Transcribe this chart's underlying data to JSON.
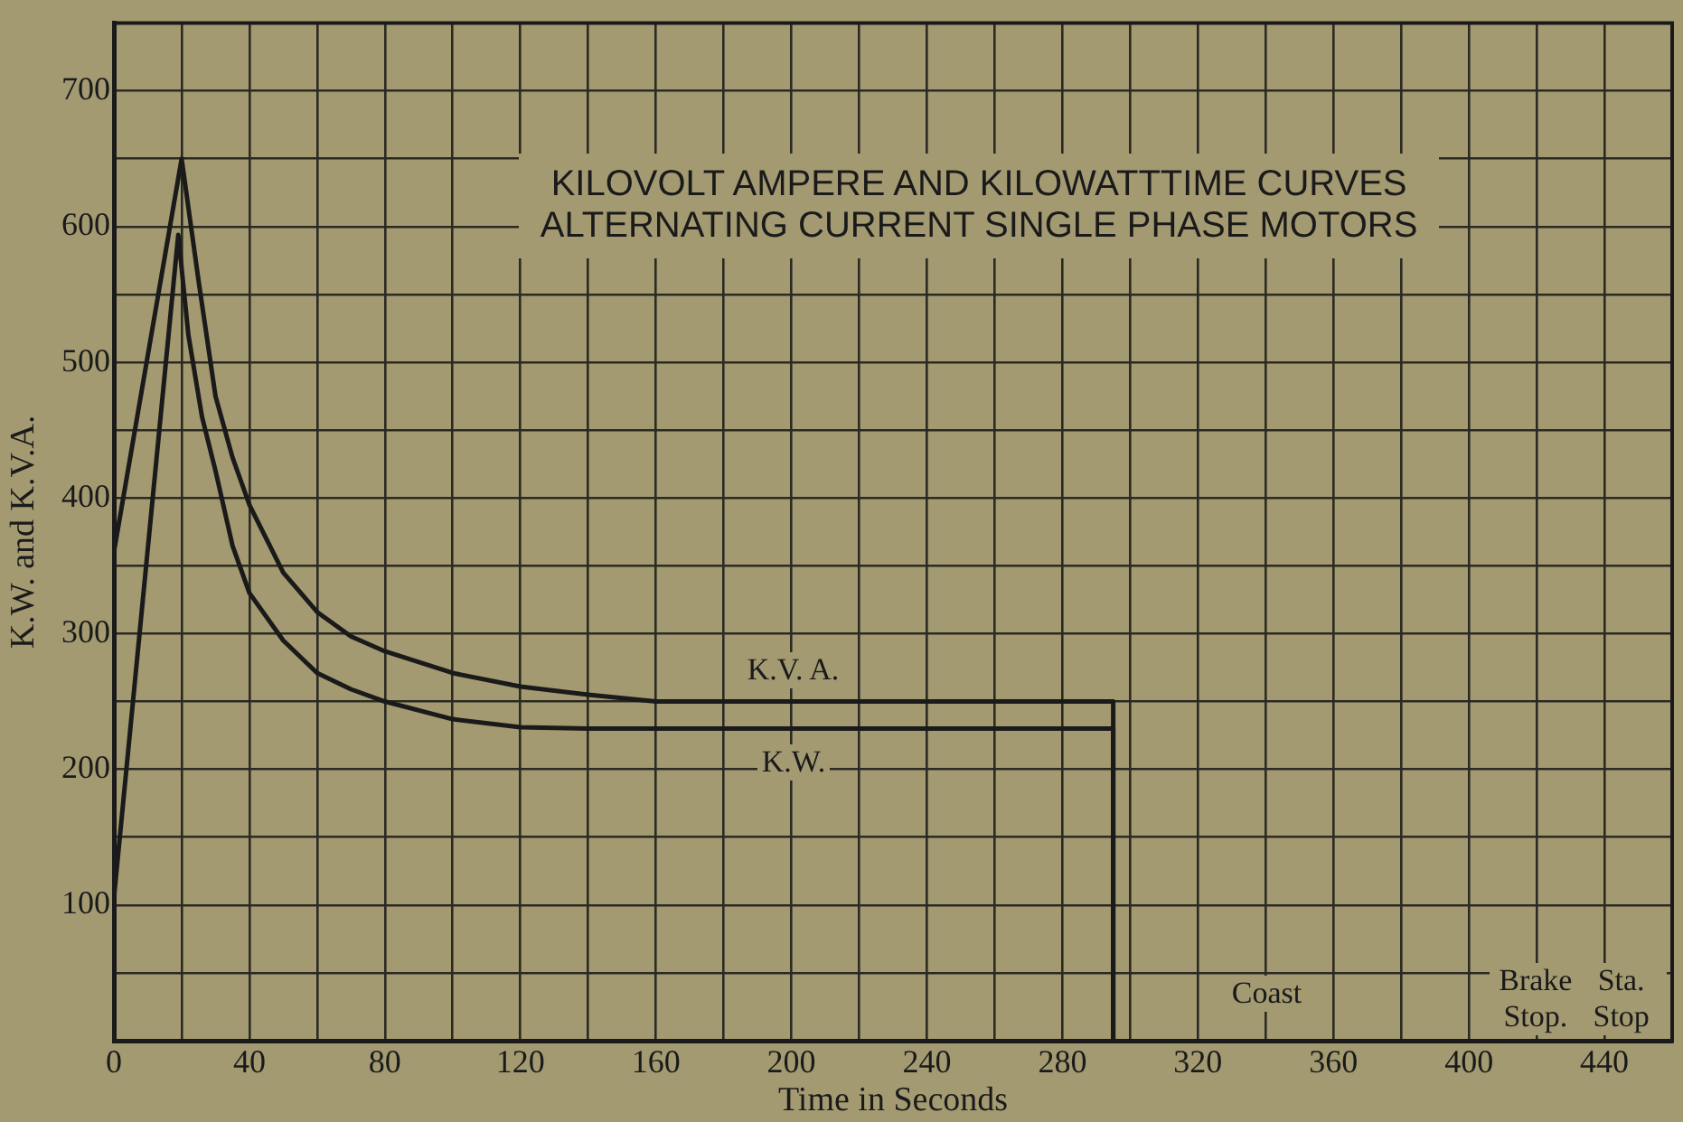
{
  "chart_data": {
    "type": "line",
    "title": "KILOVOLT AMPERE AND KILOWATTTIME CURVES",
    "subtitle": "ALTERNATING CURRENT SINGLE PHASE MOTORS",
    "xlabel": "Time in Seconds",
    "ylabel": "K.W. and K.V.A.",
    "xlim": [
      0,
      460
    ],
    "ylim": [
      0,
      750
    ],
    "xticks": [
      0,
      {
        "value": 20,
        "label": null
      },
      40,
      {
        "value": 60,
        "label": null
      },
      80,
      {
        "value": 100,
        "label": null
      },
      120,
      {
        "value": 140,
        "label": null
      },
      160,
      {
        "value": 180,
        "label": null
      },
      200,
      {
        "value": 220,
        "label": null
      },
      240,
      {
        "value": 260,
        "label": null
      },
      280,
      {
        "value": 300,
        "label": null
      },
      320,
      {
        "value": 340,
        "label": null
      },
      360,
      {
        "value": 380,
        "label": null
      },
      400,
      {
        "value": 420,
        "label": null
      },
      440
    ],
    "yticks": [
      {
        "value": 0,
        "label": null
      },
      {
        "value": 50,
        "label": null
      },
      100,
      {
        "value": 150,
        "label": null
      },
      200,
      {
        "value": 250,
        "label": null
      },
      300,
      {
        "value": 350,
        "label": null
      },
      400,
      {
        "value": 450,
        "label": null
      },
      500,
      {
        "value": 550,
        "label": null
      },
      600,
      {
        "value": 650,
        "label": null
      },
      700,
      {
        "value": 750,
        "label": null
      }
    ],
    "grid": true,
    "legend": false,
    "marker": "none",
    "line_style": "solid",
    "series": [
      {
        "name": "K.V. A.",
        "color": "#1a1a1a",
        "x": [
          0,
          20,
          25,
          30,
          35,
          40,
          50,
          60,
          70,
          80,
          100,
          120,
          140,
          160,
          200,
          250,
          295,
          295
        ],
        "values": [
          360,
          650,
          560,
          475,
          430,
          395,
          345,
          316,
          298,
          287,
          271,
          261,
          255,
          250,
          250,
          250,
          250,
          0
        ]
      },
      {
        "name": "K.W.",
        "color": "#1a1a1a",
        "x": [
          0,
          19,
          22,
          26,
          30,
          35,
          40,
          50,
          60,
          70,
          80,
          100,
          120,
          140,
          200,
          250,
          295,
          295
        ],
        "values": [
          105,
          594,
          520,
          460,
          420,
          365,
          330,
          295,
          271,
          259,
          250,
          237,
          231,
          230,
          230,
          230,
          230,
          0
        ]
      }
    ],
    "annotations": [
      "Coast",
      "Brake Stop.",
      "Sta. Stop"
    ]
  }
}
